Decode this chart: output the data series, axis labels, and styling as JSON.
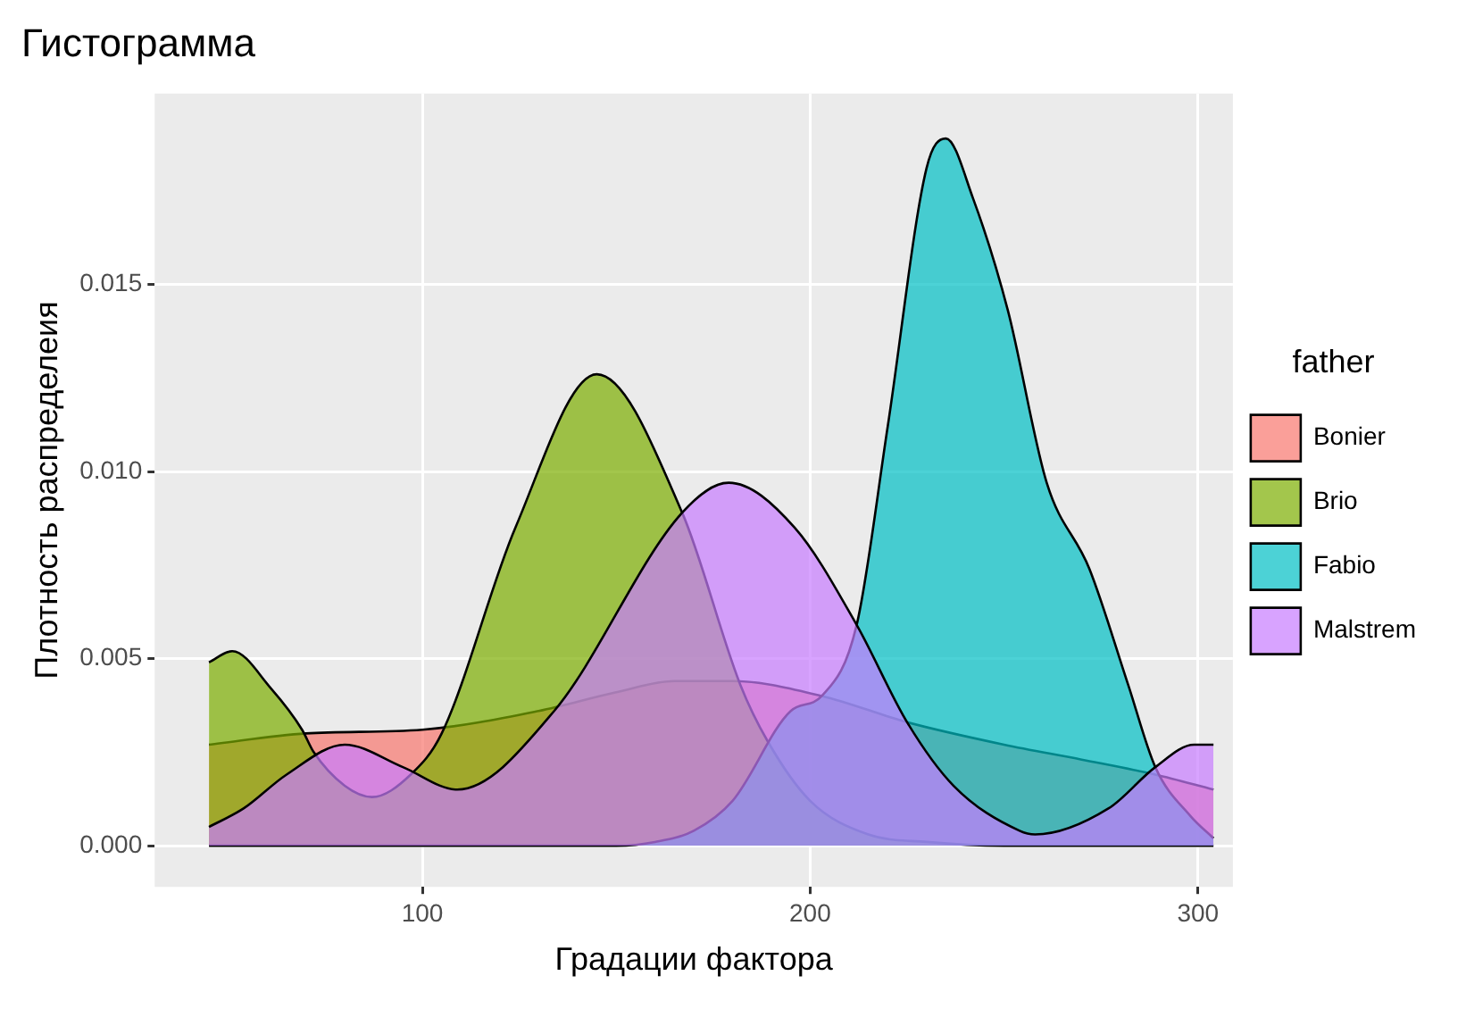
{
  "chart_data": {
    "type": "area",
    "title": "Гистограмма",
    "xlabel": "Градации фактора",
    "ylabel": "Плотность распределеия",
    "legend_title": "father",
    "legend": "right",
    "grid": true,
    "xlim": [
      31,
      309
    ],
    "ylim": [
      -0.0011,
      0.0201
    ],
    "xticks": [
      100,
      200,
      300
    ],
    "yticks": [
      {
        "value": 0,
        "label": "0.000"
      },
      {
        "value": 0.005,
        "label": "0.005"
      },
      {
        "value": 0.01,
        "label": "0.010"
      },
      {
        "value": 0.015,
        "label": "0.015"
      }
    ],
    "series": [
      {
        "name": "Bonier",
        "color": "#f8766d",
        "x": [
          45,
          70,
          100,
          130,
          150,
          165,
          180,
          203,
          225,
          250,
          270,
          289,
          304
        ],
        "values": [
          0.0027,
          0.003,
          0.0031,
          0.0036,
          0.0041,
          0.0044,
          0.0044,
          0.004,
          0.0033,
          0.0027,
          0.0023,
          0.0019,
          0.0015
        ]
      },
      {
        "name": "Brio",
        "color": "#7cae00",
        "x": [
          45,
          51,
          61,
          69,
          72,
          80,
          87,
          97,
          105,
          124,
          145,
          167,
          182,
          189,
          200,
          215,
          230,
          250,
          304
        ],
        "values": [
          0.0049,
          0.0052,
          0.0042,
          0.0031,
          0.0025,
          0.0016,
          0.0013,
          0.0019,
          0.003,
          0.0085,
          0.0126,
          0.0089,
          0.0043,
          0.0028,
          0.0012,
          0.0003,
          0.0001,
          0,
          0
        ]
      },
      {
        "name": "Fabio",
        "color": "#00bfc4",
        "x": [
          45,
          150,
          160,
          170,
          180,
          195,
          203,
          212,
          220,
          230,
          235,
          242,
          251,
          261,
          272,
          282,
          289,
          298,
          304
        ],
        "values": [
          0,
          0,
          0.0001,
          0.0004,
          0.0012,
          0.0036,
          0.004,
          0.0059,
          0.0112,
          0.0181,
          0.0189,
          0.0173,
          0.0143,
          0.0097,
          0.0074,
          0.0043,
          0.0021,
          0.0008,
          0.0002
        ]
      },
      {
        "name": "Malstrem",
        "color": "#c77cff",
        "x": [
          45,
          54,
          65,
          80,
          95,
          109,
          134,
          167,
          179,
          196,
          212,
          225,
          237,
          254,
          258,
          277,
          289,
          299,
          304
        ],
        "values": [
          0.0005,
          0.001,
          0.0019,
          0.0027,
          0.0021,
          0.0015,
          0.0036,
          0.0089,
          0.0097,
          0.0085,
          0.0059,
          0.0033,
          0.0016,
          0.0004,
          0.0003,
          0.001,
          0.0021,
          0.0027,
          0.0027
        ]
      }
    ]
  }
}
